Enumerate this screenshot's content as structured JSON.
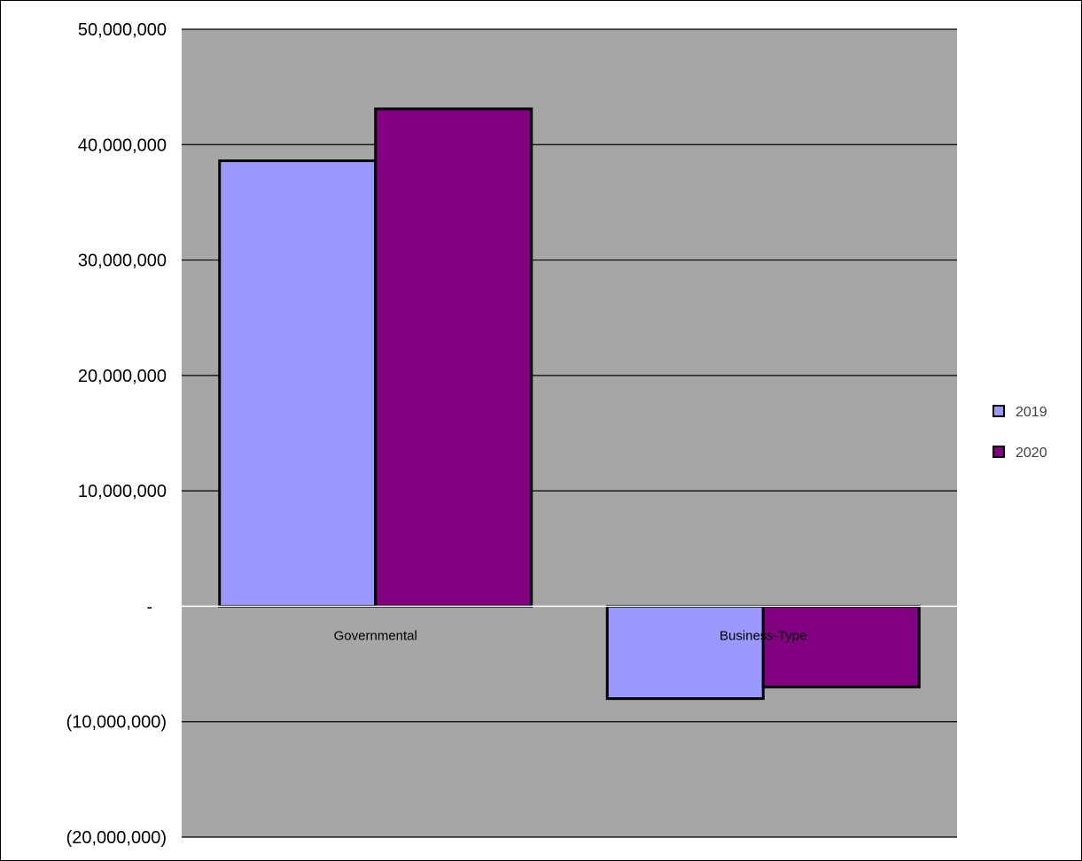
{
  "chart_data": {
    "type": "bar",
    "categories": [
      "Governmental",
      "Business-Type"
    ],
    "series": [
      {
        "name": "2019",
        "values": [
          38600000,
          -8000000
        ],
        "color": "#9999FF"
      },
      {
        "name": "2020",
        "values": [
          43100000,
          -7000000
        ],
        "color": "#800080"
      }
    ],
    "ylim": [
      -20000000,
      50000000
    ],
    "yticks": [
      50000000,
      40000000,
      30000000,
      20000000,
      10000000,
      0,
      -10000000,
      -20000000
    ],
    "ytick_labels": [
      "50,000,000",
      "40,000,000",
      "30,000,000",
      "20,000,000",
      "10,000,000",
      "-",
      "(10,000,000)",
      "(20,000,000)"
    ],
    "plot_background": "#A6A6A6",
    "grid": true,
    "legend_position": "right",
    "title": "",
    "xlabel": "",
    "ylabel": ""
  }
}
